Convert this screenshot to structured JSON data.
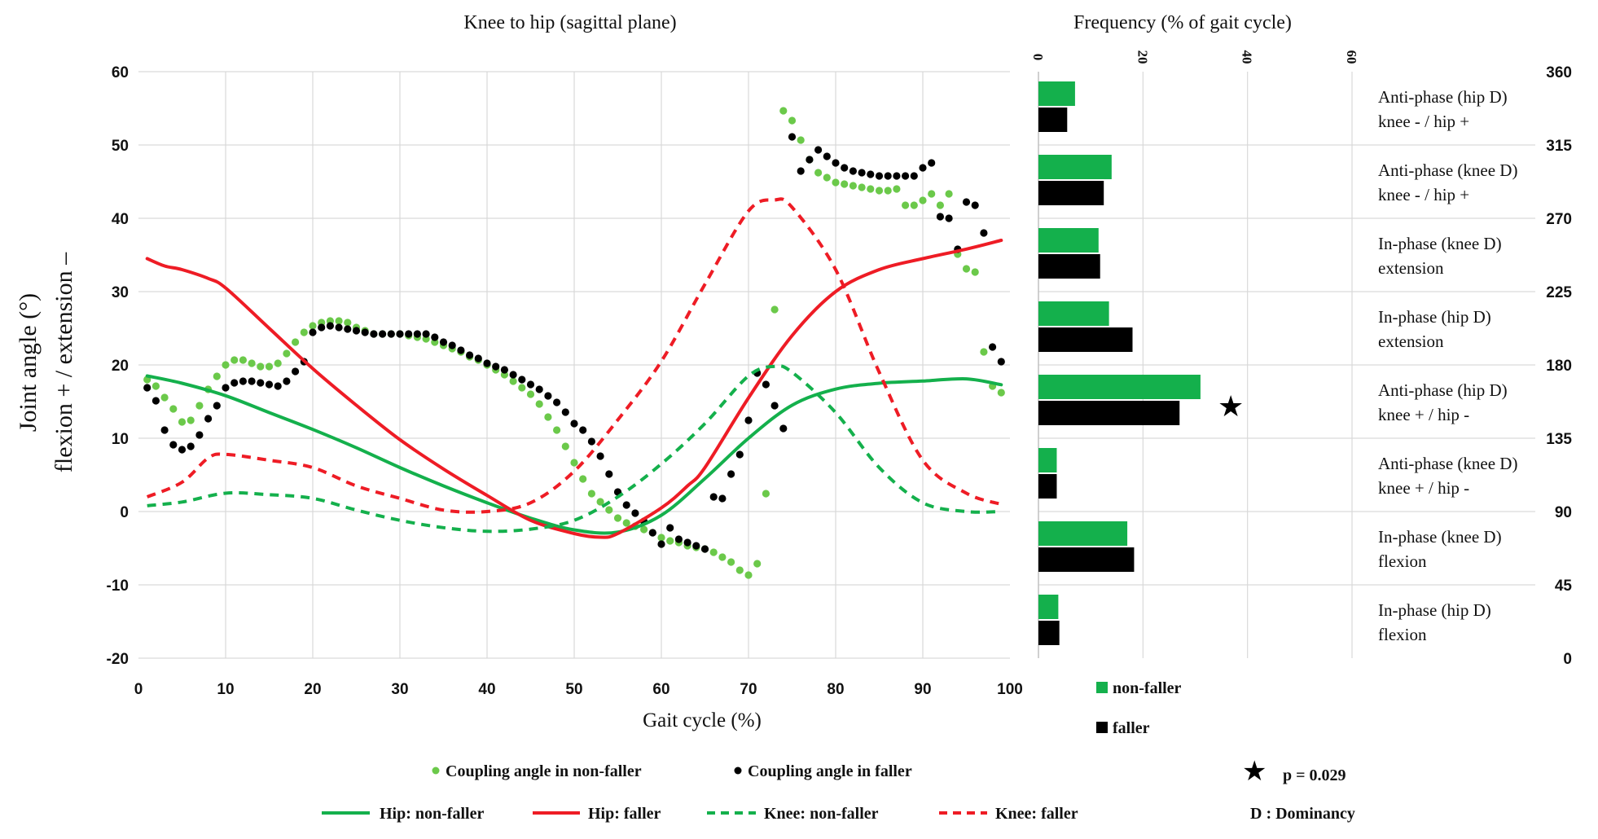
{
  "colors": {
    "green": "#14b04c",
    "red": "#ee1c25",
    "greenDot": "#6bc94a",
    "black": "#000000",
    "grid": "#d9d9d9"
  },
  "chart_data": [
    {
      "type": "line",
      "title": "Knee to hip (sagittal plane)",
      "xlabel": "Gait cycle (%)",
      "ylabel": "Joint angle (°)",
      "ylabel2": "flexion + / extension –",
      "xlim": [
        0,
        100
      ],
      "ylim": [
        -20,
        60
      ],
      "xticks": [
        "0",
        "10",
        "20",
        "30",
        "40",
        "50",
        "60",
        "70",
        "80",
        "90",
        "100"
      ],
      "yticks": [
        "-20",
        "-10",
        "0",
        "10",
        "20",
        "30",
        "40",
        "50",
        "60"
      ],
      "y2lim": [
        0,
        360
      ],
      "y2ticks": [
        "0",
        "45",
        "90",
        "135",
        "180",
        "225",
        "270",
        "315",
        "360"
      ],
      "series": [
        {
          "name": "Hip: non-faller",
          "style": "solid",
          "color": "green",
          "x": [
            1,
            5,
            10,
            15,
            20,
            25,
            30,
            35,
            40,
            45,
            50,
            55,
            60,
            65,
            70,
            75,
            80,
            85,
            90,
            95,
            99
          ],
          "y": [
            18.5,
            17.5,
            15.8,
            13.5,
            11.2,
            8.7,
            6,
            3.5,
            1.2,
            -0.9,
            -2.5,
            -2.8,
            -0.5,
            4.5,
            10,
            14.5,
            16.7,
            17.5,
            17.8,
            18.1,
            17.3
          ]
        },
        {
          "name": "Hip: faller",
          "style": "solid",
          "color": "red",
          "x": [
            1,
            3,
            5,
            8,
            10,
            15,
            20,
            25,
            30,
            35,
            40,
            45,
            50,
            53,
            55,
            60,
            63,
            65,
            70,
            75,
            80,
            85,
            90,
            95,
            99
          ],
          "y": [
            34.5,
            33.5,
            33,
            31.8,
            30.5,
            25,
            19.5,
            14.5,
            9.8,
            5.8,
            2.2,
            -1.2,
            -3,
            -3.5,
            -3,
            0.5,
            3.5,
            6,
            15.5,
            24,
            30,
            33,
            34.5,
            35.8,
            37
          ]
        },
        {
          "name": "Knee: non-faller",
          "style": "dashed",
          "color": "green",
          "x": [
            1,
            5,
            10,
            15,
            20,
            25,
            30,
            35,
            40,
            45,
            50,
            55,
            60,
            65,
            70,
            73,
            75,
            80,
            85,
            90,
            95,
            99
          ],
          "y": [
            0.8,
            1.3,
            2.5,
            2.3,
            1.8,
            0.2,
            -1.2,
            -2.2,
            -2.7,
            -2.4,
            -1.2,
            2,
            6.5,
            12,
            18.5,
            19.8,
            19,
            13.5,
            6,
            1.2,
            0,
            0
          ]
        },
        {
          "name": "Knee: faller",
          "style": "dashed",
          "color": "red",
          "x": [
            1,
            5,
            8,
            10,
            15,
            20,
            25,
            30,
            35,
            40,
            45,
            50,
            55,
            60,
            65,
            70,
            73,
            75,
            80,
            85,
            90,
            95,
            99
          ],
          "y": [
            2,
            4,
            7.3,
            7.8,
            7,
            6,
            3.5,
            1.8,
            0.2,
            0,
            1.2,
            5.5,
            12.5,
            20.5,
            31,
            41,
            42.5,
            41.5,
            33,
            19,
            7,
            2.5,
            1
          ]
        },
        {
          "name": "Coupling angle in non-faller",
          "style": "dots",
          "color": "greenDot",
          "axis": "right",
          "x": [
            1,
            2,
            3,
            4,
            5,
            6,
            7,
            8,
            9,
            10,
            11,
            12,
            13,
            14,
            15,
            16,
            17,
            18,
            19,
            20,
            21,
            22,
            23,
            24,
            25,
            26,
            27,
            28,
            29,
            30,
            31,
            32,
            33,
            34,
            35,
            36,
            37,
            38,
            39,
            40,
            41,
            42,
            43,
            44,
            45,
            46,
            47,
            48,
            49,
            50,
            51,
            52,
            53,
            54,
            55,
            56,
            57,
            58,
            59,
            60,
            61,
            62,
            63,
            64,
            65,
            66,
            67,
            68,
            69,
            70,
            71,
            72,
            73,
            74,
            75,
            76,
            77,
            78,
            79,
            80,
            81,
            82,
            83,
            84,
            85,
            86,
            87,
            88,
            89,
            90,
            91,
            92,
            93,
            94,
            95,
            96,
            97,
            98,
            99
          ],
          "y": [
            171,
            167,
            160,
            153,
            145,
            146,
            155,
            165,
            173,
            180,
            183,
            183,
            181,
            179,
            179,
            181,
            187,
            194,
            200,
            204,
            206,
            207,
            207,
            206,
            203,
            201,
            199,
            199,
            199,
            199,
            198,
            197,
            196,
            194,
            192,
            190,
            188,
            185,
            183,
            180,
            177,
            174,
            170,
            166,
            162,
            156,
            148,
            140,
            130,
            120,
            110,
            101,
            96,
            91,
            86,
            83,
            81,
            79,
            77,
            74,
            72,
            71,
            69,
            68,
            67,
            65,
            62,
            59,
            54,
            51,
            58,
            101,
            214,
            336,
            330,
            318,
            306,
            298,
            295,
            292,
            291,
            290,
            289,
            288,
            287,
            287,
            288,
            278,
            278,
            281,
            285,
            278,
            285,
            248,
            239,
            237,
            188,
            167,
            163
          ]
        },
        {
          "name": "Coupling angle in faller",
          "style": "dots",
          "color": "black",
          "axis": "right",
          "x": [
            1,
            2,
            3,
            4,
            5,
            6,
            7,
            8,
            9,
            10,
            11,
            12,
            13,
            14,
            15,
            16,
            17,
            18,
            19,
            20,
            21,
            22,
            23,
            24,
            25,
            26,
            27,
            28,
            29,
            30,
            31,
            32,
            33,
            34,
            35,
            36,
            37,
            38,
            39,
            40,
            41,
            42,
            43,
            44,
            45,
            46,
            47,
            48,
            49,
            50,
            51,
            52,
            53,
            54,
            55,
            56,
            57,
            58,
            59,
            60,
            61,
            62,
            63,
            64,
            65,
            66,
            67,
            68,
            69,
            70,
            71,
            72,
            73,
            74,
            75,
            76,
            77,
            78,
            79,
            80,
            81,
            82,
            83,
            84,
            85,
            86,
            87,
            88,
            89,
            90,
            91,
            92,
            93,
            94,
            95,
            96,
            97,
            98,
            99
          ],
          "y": [
            166,
            158,
            140,
            131,
            128,
            130,
            137,
            147,
            155,
            166,
            169,
            170,
            170,
            169,
            168,
            167,
            170,
            176,
            182,
            200,
            203,
            204,
            203,
            202,
            201,
            200,
            199,
            199,
            199,
            199,
            199,
            199,
            199,
            197,
            194,
            192,
            189,
            186,
            184,
            181,
            179,
            177,
            174,
            171,
            168,
            165,
            161,
            157,
            151,
            144,
            140,
            133,
            124,
            113,
            102,
            94,
            89,
            84,
            77,
            70,
            80,
            73,
            71,
            69,
            67,
            99,
            98,
            113,
            125,
            146,
            175,
            168,
            155,
            141,
            320,
            299,
            306,
            312,
            308,
            304,
            301,
            299,
            298,
            297,
            296,
            296,
            296,
            296,
            296,
            301,
            304,
            271,
            270,
            251,
            280,
            278,
            261,
            191,
            182
          ]
        }
      ]
    },
    {
      "type": "bar",
      "orientation": "horizontal",
      "title": "Frequency (% of gait cycle)",
      "xlim": [
        0,
        60
      ],
      "xticks": [
        "0",
        "20",
        "40",
        "60"
      ],
      "categories": [
        [
          "Anti-phase (hip D)",
          "knee - / hip +"
        ],
        [
          "Anti-phase (knee D)",
          "knee - / hip +"
        ],
        [
          "In-phase (knee D)",
          "extension"
        ],
        [
          "In-phase (hip D)",
          "extension"
        ],
        [
          "Anti-phase (hip D)",
          "knee + / hip -"
        ],
        [
          "Anti-phase (knee D)",
          "knee + / hip -"
        ],
        [
          "In-phase (knee D)",
          "flexion"
        ],
        [
          "In-phase (hip D)",
          "flexion"
        ]
      ],
      "series": [
        {
          "name": "non-faller",
          "color": "green",
          "values": [
            7,
            14,
            11.5,
            13.5,
            31,
            3.5,
            17,
            3.8
          ]
        },
        {
          "name": "faller",
          "color": "black",
          "values": [
            5.5,
            12.5,
            11.8,
            18,
            27,
            3.5,
            18.3,
            4
          ]
        }
      ],
      "significance": {
        "category_index": 4,
        "symbol": "★",
        "label": "p = 0.029"
      },
      "note": "D : Dominancy"
    }
  ]
}
